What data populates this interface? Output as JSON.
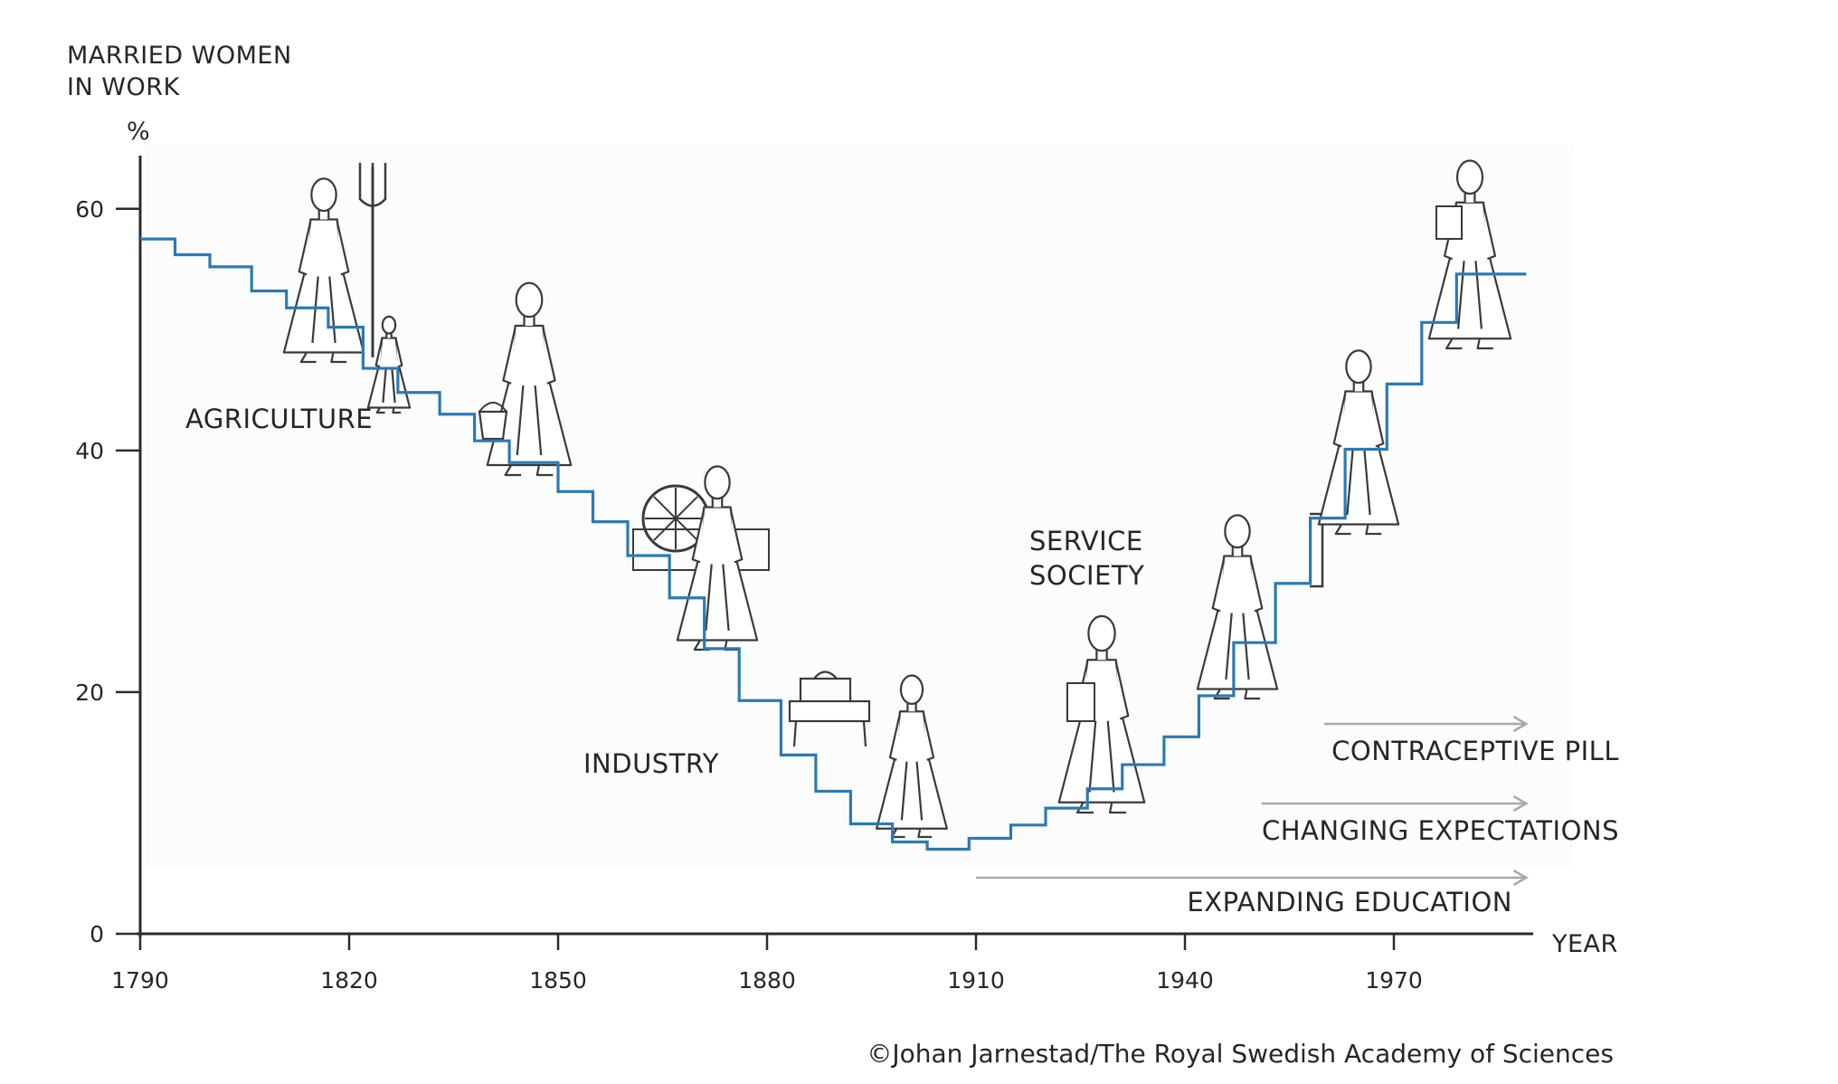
{
  "chart_data": {
    "type": "line",
    "ylabel_lines": [
      "MARRIED WOMEN",
      "IN WORK"
    ],
    "yunit": "%",
    "xlabel": "YEAR",
    "xlim": [
      1790,
      1990
    ],
    "ylim": [
      0,
      65
    ],
    "yticks": [
      0,
      20,
      40,
      60
    ],
    "xticks": [
      1790,
      1820,
      1850,
      1880,
      1910,
      1940,
      1970
    ],
    "series_color": "#2a7ab5",
    "series": [
      {
        "x": [
          1790,
          1795,
          1800,
          1806,
          1811,
          1817,
          1822,
          1827,
          1833,
          1838,
          1843,
          1850,
          1855,
          1860,
          1866,
          1871,
          1876,
          1882,
          1887,
          1892,
          1898,
          1903,
          1909,
          1915,
          1920,
          1926,
          1931,
          1937,
          1942,
          1947,
          1953,
          1958,
          1963,
          1969,
          1974,
          1979,
          1984,
          1989
        ],
        "y": [
          57.5,
          56.2,
          55.2,
          53.2,
          51.8,
          50.2,
          46.8,
          44.8,
          43.0,
          40.8,
          39.0,
          36.6,
          34.1,
          31.3,
          27.8,
          23.6,
          19.3,
          14.8,
          11.8,
          9.1,
          7.6,
          7.0,
          7.9,
          9.0,
          10.4,
          12.0,
          14.0,
          16.3,
          19.7,
          24.1,
          29.0,
          34.4,
          40.1,
          45.5,
          50.6,
          54.6,
          54.6,
          54.6
        ]
      }
    ],
    "annotations": [
      {
        "text": "AGRICULTURE"
      },
      {
        "text": "INDUSTRY"
      },
      {
        "text": "SERVICE SOCIETY"
      }
    ],
    "arrows": [
      {
        "text": "CONTRACEPTIVE PILL",
        "from": 1960,
        "to": 1989
      },
      {
        "text": "CHANGING EXPECTATIONS",
        "from": 1951,
        "to": 1989
      },
      {
        "text": "EXPANDING EDUCATION",
        "from": 1910,
        "to": 1989
      }
    ]
  },
  "credit": "©Johan Jarnestad/The Royal Swedish Academy of Sciences"
}
